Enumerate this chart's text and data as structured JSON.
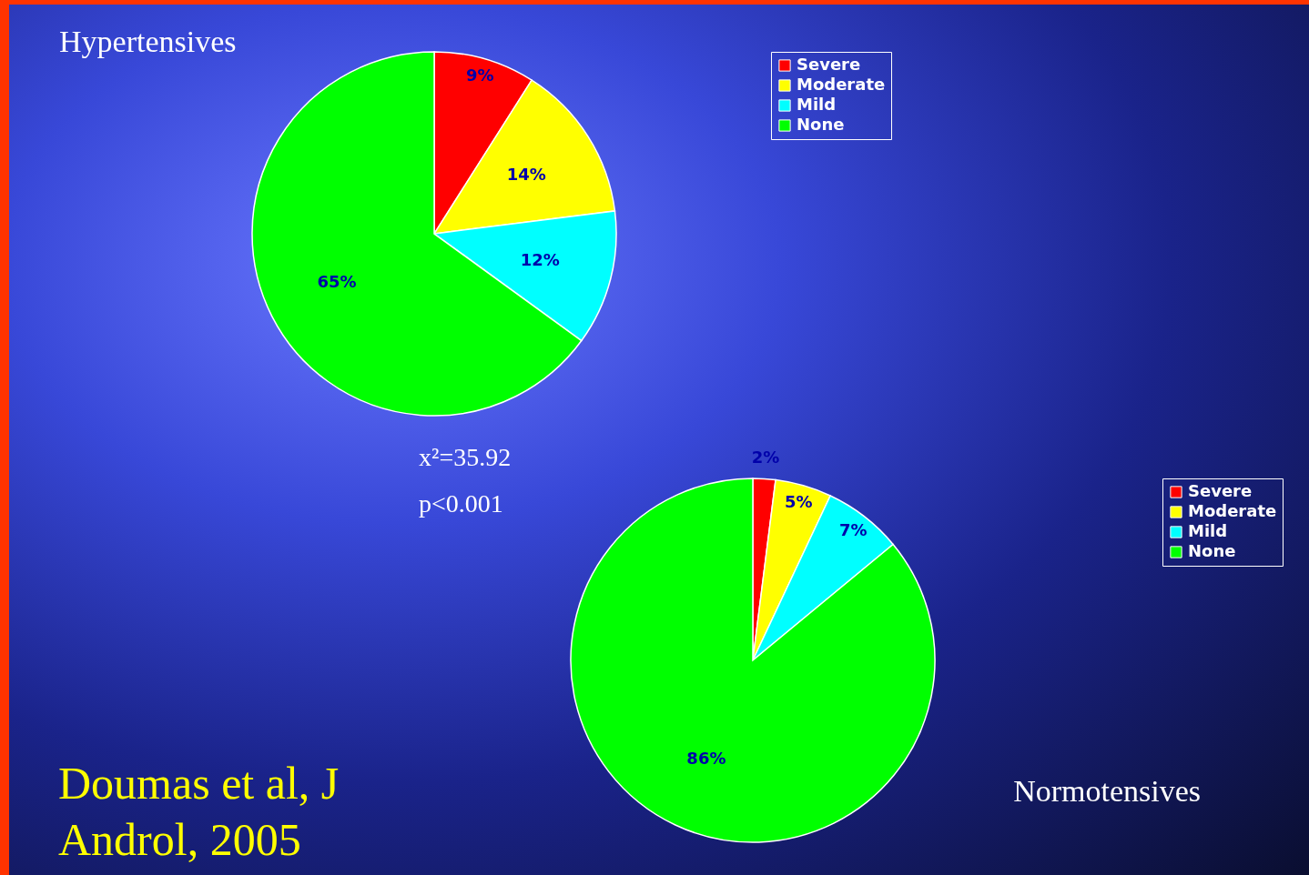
{
  "chart_data": [
    {
      "type": "pie",
      "title": "Hypertensives",
      "categories": [
        "Severe",
        "Moderate",
        "Mild",
        "None"
      ],
      "values": [
        9,
        14,
        12,
        65
      ],
      "colors": [
        "#ff0000",
        "#ffff00",
        "#00ffff",
        "#00ff00"
      ],
      "value_labels": [
        "9%",
        "14%",
        "12%",
        "65%"
      ],
      "legend": "right",
      "annotations": [
        "x²=35.92",
        "p<0.001"
      ]
    },
    {
      "type": "pie",
      "title": "Normotensives",
      "categories": [
        "Severe",
        "Moderate",
        "Mild",
        "None"
      ],
      "values": [
        2,
        5,
        7,
        86
      ],
      "colors": [
        "#ff0000",
        "#ffff00",
        "#00ffff",
        "#00ff00"
      ],
      "value_labels": [
        "2%",
        "5%",
        "7%",
        "86%"
      ],
      "legend": "right",
      "annotations": [
        "Doumas et al,    J Androl, 2005"
      ]
    }
  ]
}
